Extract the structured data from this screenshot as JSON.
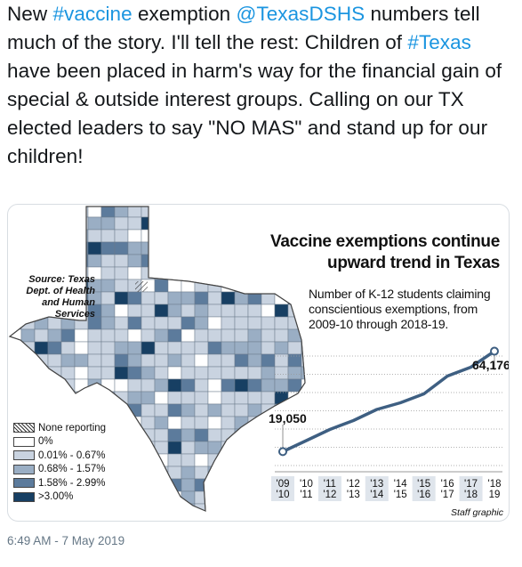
{
  "tweet": {
    "segments": [
      {
        "text": "New ",
        "link": false
      },
      {
        "text": "#vaccine",
        "link": true
      },
      {
        "text": " exemption ",
        "link": false
      },
      {
        "text": "@TexasDSHS",
        "link": true
      },
      {
        "text": " numbers tell much of the story.  I'll tell the rest: Children of ",
        "link": false
      },
      {
        "text": "#Texas",
        "link": true
      },
      {
        "text": " have been placed in harm's way for the financial gain of special & outside interest groups.  Calling on our TX elected leaders to say \"NO MAS\" and stand up for our children!",
        "link": false
      }
    ],
    "timestamp": "6:49 AM - 7 May 2019",
    "link_color": "#1b95e0"
  },
  "graphic": {
    "source": "Source: Texas Dept. of Health and Human Services",
    "legend": [
      {
        "label": "None reporting",
        "color": "hatched"
      },
      {
        "label": "0%",
        "color": "#ffffff"
      },
      {
        "label": "0.01% - 0.67%",
        "color": "#c9d3e0"
      },
      {
        "label": "0.68% - 1.57%",
        "color": "#9aaec4"
      },
      {
        "label": "1.58% - 2.99%",
        "color": "#5c7b9c"
      },
      {
        "label": ">3.00%",
        "color": "#173f63"
      }
    ],
    "title_line1": "Vaccine exemptions continue",
    "title_line2": "upward trend in Texas",
    "subtitle": "Number of K-12 students claiming conscientious exemptions, from 2009-10 through 2018-19.",
    "start_label": "19,050",
    "end_label": "64,176",
    "credit": "Staff graphic",
    "line_color": "#3e5f82"
  },
  "chart_data": {
    "type": "line",
    "title": "Vaccine exemptions continue upward trend in Texas",
    "subtitle": "Number of K-12 students claiming conscientious exemptions, from 2009-10 through 2018-19.",
    "categories": [
      "'09 '10",
      "'10 '11",
      "'11 '12",
      "'12 '13",
      "'13 '14",
      "'14 '15",
      "'15 '16",
      "'16 '17",
      "'17 '18",
      "'18 19"
    ],
    "year_top": [
      "'09",
      "'10",
      "'11",
      "'12",
      "'13",
      "'14",
      "'15",
      "'16",
      "'17",
      "'18"
    ],
    "year_bottom": [
      "'10",
      "'11",
      "'12",
      "'13",
      "'14",
      "'15",
      "'16",
      "'17",
      "'18",
      "19"
    ],
    "values": [
      19050,
      24000,
      29000,
      33000,
      38000,
      41000,
      45000,
      53000,
      57000,
      64176
    ],
    "ylim": [
      10000,
      70000
    ],
    "labeled_points": {
      "first": "19,050",
      "last": "64,176"
    },
    "grid": true
  }
}
